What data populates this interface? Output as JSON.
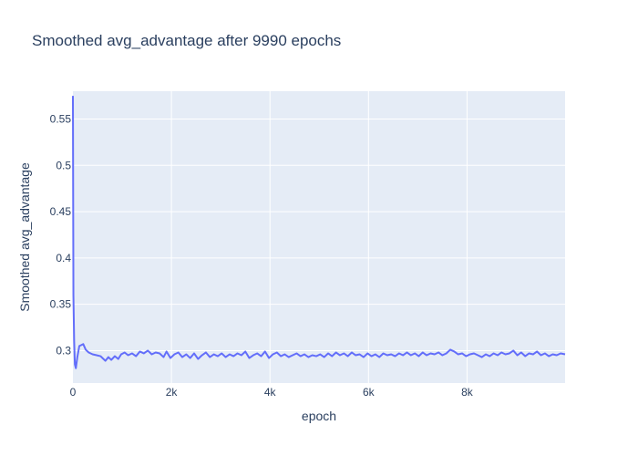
{
  "chart_data": {
    "type": "line",
    "title": "Smoothed avg_advantage after 9990 epochs",
    "xlabel": "epoch",
    "ylabel": "Smoothed avg_advantage",
    "xlim": [
      0,
      9990
    ],
    "ylim": [
      0.265,
      0.58
    ],
    "x_ticks": [
      0,
      2000,
      4000,
      6000,
      8000
    ],
    "x_tick_labels": [
      "0",
      "2k",
      "4k",
      "6k",
      "8k"
    ],
    "y_ticks": [
      0.3,
      0.35,
      0.4,
      0.45,
      0.5,
      0.55
    ],
    "y_tick_labels": [
      "0.3",
      "0.35",
      "0.4",
      "0.45",
      "0.5",
      "0.55"
    ],
    "grid": true,
    "series": [
      {
        "name": "Smoothed avg_advantage",
        "color": "#636efa",
        "points": [
          [
            0,
            0.575
          ],
          [
            10,
            0.36
          ],
          [
            25,
            0.31
          ],
          [
            40,
            0.285
          ],
          [
            60,
            0.281
          ],
          [
            90,
            0.293
          ],
          [
            130,
            0.305
          ],
          [
            170,
            0.306
          ],
          [
            210,
            0.307
          ],
          [
            260,
            0.301
          ],
          [
            320,
            0.298
          ],
          [
            400,
            0.296
          ],
          [
            480,
            0.295
          ],
          [
            560,
            0.294
          ],
          [
            620,
            0.291
          ],
          [
            660,
            0.289
          ],
          [
            720,
            0.293
          ],
          [
            780,
            0.29
          ],
          [
            850,
            0.294
          ],
          [
            920,
            0.291
          ],
          [
            980,
            0.296
          ],
          [
            1050,
            0.298
          ],
          [
            1120,
            0.295
          ],
          [
            1200,
            0.297
          ],
          [
            1280,
            0.294
          ],
          [
            1360,
            0.299
          ],
          [
            1440,
            0.297
          ],
          [
            1520,
            0.3
          ],
          [
            1600,
            0.296
          ],
          [
            1680,
            0.298
          ],
          [
            1760,
            0.297
          ],
          [
            1840,
            0.293
          ],
          [
            1900,
            0.299
          ],
          [
            1980,
            0.292
          ],
          [
            2060,
            0.296
          ],
          [
            2140,
            0.298
          ],
          [
            2220,
            0.293
          ],
          [
            2300,
            0.296
          ],
          [
            2380,
            0.292
          ],
          [
            2460,
            0.297
          ],
          [
            2540,
            0.291
          ],
          [
            2620,
            0.295
          ],
          [
            2700,
            0.298
          ],
          [
            2780,
            0.293
          ],
          [
            2860,
            0.296
          ],
          [
            2940,
            0.294
          ],
          [
            3020,
            0.297
          ],
          [
            3100,
            0.293
          ],
          [
            3180,
            0.296
          ],
          [
            3260,
            0.294
          ],
          [
            3340,
            0.297
          ],
          [
            3420,
            0.295
          ],
          [
            3500,
            0.299
          ],
          [
            3580,
            0.292
          ],
          [
            3660,
            0.295
          ],
          [
            3740,
            0.297
          ],
          [
            3820,
            0.294
          ],
          [
            3900,
            0.299
          ],
          [
            3980,
            0.292
          ],
          [
            4060,
            0.296
          ],
          [
            4140,
            0.298
          ],
          [
            4220,
            0.294
          ],
          [
            4300,
            0.296
          ],
          [
            4380,
            0.293
          ],
          [
            4460,
            0.295
          ],
          [
            4540,
            0.297
          ],
          [
            4620,
            0.294
          ],
          [
            4700,
            0.296
          ],
          [
            4780,
            0.293
          ],
          [
            4860,
            0.295
          ],
          [
            4940,
            0.294
          ],
          [
            5020,
            0.296
          ],
          [
            5100,
            0.293
          ],
          [
            5180,
            0.297
          ],
          [
            5260,
            0.294
          ],
          [
            5340,
            0.298
          ],
          [
            5420,
            0.295
          ],
          [
            5500,
            0.297
          ],
          [
            5580,
            0.294
          ],
          [
            5660,
            0.298
          ],
          [
            5740,
            0.295
          ],
          [
            5820,
            0.296
          ],
          [
            5900,
            0.293
          ],
          [
            5980,
            0.297
          ],
          [
            6060,
            0.294
          ],
          [
            6140,
            0.296
          ],
          [
            6220,
            0.293
          ],
          [
            6300,
            0.297
          ],
          [
            6380,
            0.295
          ],
          [
            6460,
            0.296
          ],
          [
            6540,
            0.294
          ],
          [
            6620,
            0.297
          ],
          [
            6700,
            0.295
          ],
          [
            6780,
            0.298
          ],
          [
            6860,
            0.295
          ],
          [
            6940,
            0.297
          ],
          [
            7020,
            0.294
          ],
          [
            7100,
            0.298
          ],
          [
            7180,
            0.295
          ],
          [
            7260,
            0.297
          ],
          [
            7340,
            0.296
          ],
          [
            7420,
            0.298
          ],
          [
            7500,
            0.295
          ],
          [
            7580,
            0.297
          ],
          [
            7660,
            0.301
          ],
          [
            7740,
            0.299
          ],
          [
            7820,
            0.296
          ],
          [
            7900,
            0.297
          ],
          [
            7980,
            0.294
          ],
          [
            8060,
            0.296
          ],
          [
            8140,
            0.297
          ],
          [
            8220,
            0.295
          ],
          [
            8300,
            0.293
          ],
          [
            8380,
            0.296
          ],
          [
            8460,
            0.294
          ],
          [
            8540,
            0.297
          ],
          [
            8620,
            0.295
          ],
          [
            8700,
            0.298
          ],
          [
            8780,
            0.296
          ],
          [
            8860,
            0.297
          ],
          [
            8940,
            0.3
          ],
          [
            9020,
            0.295
          ],
          [
            9100,
            0.298
          ],
          [
            9180,
            0.294
          ],
          [
            9260,
            0.297
          ],
          [
            9340,
            0.296
          ],
          [
            9420,
            0.299
          ],
          [
            9500,
            0.295
          ],
          [
            9580,
            0.297
          ],
          [
            9660,
            0.294
          ],
          [
            9740,
            0.296
          ],
          [
            9820,
            0.295
          ],
          [
            9900,
            0.297
          ],
          [
            9990,
            0.296
          ]
        ]
      }
    ]
  }
}
